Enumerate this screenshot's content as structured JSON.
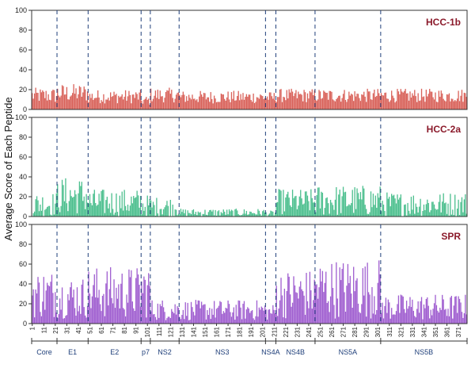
{
  "chart_data": {
    "type": "bar",
    "ylabel": "Average Score of Each Peptide",
    "ylim": [
      0,
      100
    ],
    "yticks": [
      0,
      20,
      40,
      60,
      80,
      100
    ],
    "peptide_count": 378,
    "x_ticks": [
      1,
      11,
      21,
      31,
      41,
      51,
      61,
      71,
      81,
      91,
      101,
      111,
      121,
      131,
      141,
      151,
      161,
      171,
      181,
      191,
      201,
      211,
      221,
      231,
      241,
      251,
      261,
      271,
      281,
      291,
      301,
      311,
      321,
      331,
      341,
      351,
      361,
      371
    ],
    "regions": [
      {
        "name": "Core",
        "start": 1,
        "end": 22
      },
      {
        "name": "E1",
        "start": 23,
        "end": 49
      },
      {
        "name": "E2",
        "start": 50,
        "end": 95
      },
      {
        "name": "p7",
        "start": 96,
        "end": 103
      },
      {
        "name": "NS2",
        "start": 104,
        "end": 128
      },
      {
        "name": "NS3",
        "start": 129,
        "end": 203
      },
      {
        "name": "NS4A",
        "start": 204,
        "end": 212
      },
      {
        "name": "NS4B",
        "start": 213,
        "end": 246
      },
      {
        "name": "NS5A",
        "start": 247,
        "end": 303
      },
      {
        "name": "NS5B",
        "start": 304,
        "end": 378
      }
    ],
    "panels": [
      {
        "name": "HCC-1b",
        "color": "#d9625a",
        "segments": [
          {
            "start": 1,
            "end": 22,
            "low": 6,
            "high": 22
          },
          {
            "start": 23,
            "end": 49,
            "low": 7,
            "high": 26
          },
          {
            "start": 50,
            "end": 95,
            "low": 6,
            "high": 20
          },
          {
            "start": 96,
            "end": 103,
            "low": 4,
            "high": 14
          },
          {
            "start": 104,
            "end": 128,
            "low": 7,
            "high": 22
          },
          {
            "start": 129,
            "end": 203,
            "low": 6,
            "high": 19
          },
          {
            "start": 204,
            "end": 212,
            "low": 6,
            "high": 18
          },
          {
            "start": 213,
            "end": 246,
            "low": 7,
            "high": 21
          },
          {
            "start": 247,
            "end": 303,
            "low": 7,
            "high": 21
          },
          {
            "start": 304,
            "end": 378,
            "low": 7,
            "high": 21
          }
        ]
      },
      {
        "name": "HCC-2a",
        "color": "#4cbf8e",
        "segments": [
          {
            "start": 1,
            "end": 22,
            "low": 0,
            "high": 25
          },
          {
            "start": 23,
            "end": 49,
            "low": 2,
            "high": 40
          },
          {
            "start": 50,
            "end": 95,
            "low": 0,
            "high": 28
          },
          {
            "start": 96,
            "end": 103,
            "low": 0,
            "high": 22
          },
          {
            "start": 104,
            "end": 128,
            "low": 0,
            "high": 20
          },
          {
            "start": 129,
            "end": 203,
            "low": 0,
            "high": 8
          },
          {
            "start": 204,
            "end": 212,
            "low": 0,
            "high": 6
          },
          {
            "start": 213,
            "end": 246,
            "low": 2,
            "high": 28
          },
          {
            "start": 247,
            "end": 303,
            "low": 0,
            "high": 32
          },
          {
            "start": 304,
            "end": 378,
            "low": 0,
            "high": 25
          }
        ]
      },
      {
        "name": "SPR",
        "color": "#a05fd0",
        "segments": [
          {
            "start": 1,
            "end": 22,
            "low": 5,
            "high": 55
          },
          {
            "start": 23,
            "end": 49,
            "low": 5,
            "high": 48
          },
          {
            "start": 50,
            "end": 95,
            "low": 5,
            "high": 58
          },
          {
            "start": 96,
            "end": 103,
            "low": 5,
            "high": 62
          },
          {
            "start": 104,
            "end": 128,
            "low": 3,
            "high": 25
          },
          {
            "start": 129,
            "end": 203,
            "low": 3,
            "high": 24
          },
          {
            "start": 204,
            "end": 212,
            "low": 3,
            "high": 20
          },
          {
            "start": 213,
            "end": 246,
            "low": 5,
            "high": 55
          },
          {
            "start": 247,
            "end": 303,
            "low": 5,
            "high": 66
          },
          {
            "start": 304,
            "end": 378,
            "low": 3,
            "high": 30
          }
        ]
      }
    ],
    "region_divider_color": "#1f3f7a"
  }
}
